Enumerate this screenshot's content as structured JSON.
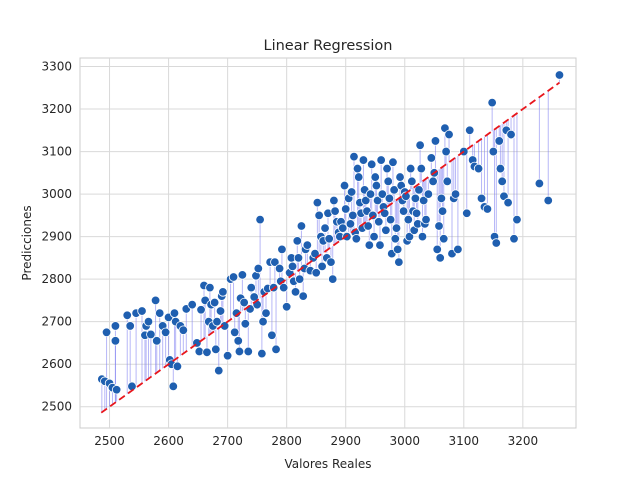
{
  "chart_data": {
    "type": "scatter",
    "title": "Linear Regression",
    "xlabel": "Valores Reales",
    "ylabel": "Predicciones",
    "xlim": [
      2450,
      3290
    ],
    "ylim": [
      2450,
      3320
    ],
    "xticks": [
      2500,
      2600,
      2700,
      2800,
      2900,
      3000,
      3100,
      3200
    ],
    "yticks": [
      2500,
      2600,
      2700,
      2800,
      2900,
      3000,
      3100,
      3200,
      3300
    ],
    "grid": true,
    "reference_line": {
      "x": [
        2486,
        3262
      ],
      "y": [
        2486,
        3262
      ],
      "color": "#e8161c",
      "style": "dashed"
    },
    "point_color": "#1f5fb0",
    "residual_color": "#7b7bf0",
    "points": [
      [
        2487,
        2565
      ],
      [
        2492,
        2560
      ],
      [
        2495,
        2675
      ],
      [
        2500,
        2555
      ],
      [
        2505,
        2545
      ],
      [
        2510,
        2690
      ],
      [
        2510,
        2655
      ],
      [
        2512,
        2540
      ],
      [
        2530,
        2715
      ],
      [
        2535,
        2690
      ],
      [
        2538,
        2548
      ],
      [
        2545,
        2720
      ],
      [
        2555,
        2725
      ],
      [
        2560,
        2668
      ],
      [
        2562,
        2690
      ],
      [
        2566,
        2700
      ],
      [
        2570,
        2670
      ],
      [
        2578,
        2750
      ],
      [
        2580,
        2655
      ],
      [
        2585,
        2720
      ],
      [
        2590,
        2690
      ],
      [
        2595,
        2675
      ],
      [
        2600,
        2710
      ],
      [
        2602,
        2610
      ],
      [
        2605,
        2600
      ],
      [
        2608,
        2548
      ],
      [
        2610,
        2720
      ],
      [
        2612,
        2700
      ],
      [
        2615,
        2595
      ],
      [
        2620,
        2690
      ],
      [
        2625,
        2680
      ],
      [
        2630,
        2730
      ],
      [
        2640,
        2740
      ],
      [
        2648,
        2650
      ],
      [
        2652,
        2630
      ],
      [
        2655,
        2728
      ],
      [
        2660,
        2785
      ],
      [
        2662,
        2750
      ],
      [
        2665,
        2628
      ],
      [
        2668,
        2700
      ],
      [
        2670,
        2780
      ],
      [
        2672,
        2740
      ],
      [
        2675,
        2690
      ],
      [
        2678,
        2745
      ],
      [
        2680,
        2635
      ],
      [
        2682,
        2700
      ],
      [
        2685,
        2585
      ],
      [
        2688,
        2725
      ],
      [
        2690,
        2760
      ],
      [
        2692,
        2770
      ],
      [
        2695,
        2690
      ],
      [
        2700,
        2620
      ],
      [
        2705,
        2800
      ],
      [
        2710,
        2805
      ],
      [
        2712,
        2675
      ],
      [
        2715,
        2720
      ],
      [
        2718,
        2655
      ],
      [
        2720,
        2630
      ],
      [
        2722,
        2755
      ],
      [
        2725,
        2810
      ],
      [
        2728,
        2745
      ],
      [
        2730,
        2695
      ],
      [
        2735,
        2630
      ],
      [
        2738,
        2730
      ],
      [
        2740,
        2780
      ],
      [
        2745,
        2758
      ],
      [
        2748,
        2808
      ],
      [
        2750,
        2740
      ],
      [
        2752,
        2825
      ],
      [
        2755,
        2940
      ],
      [
        2758,
        2625
      ],
      [
        2760,
        2700
      ],
      [
        2762,
        2770
      ],
      [
        2765,
        2720
      ],
      [
        2768,
        2778
      ],
      [
        2772,
        2840
      ],
      [
        2775,
        2668
      ],
      [
        2778,
        2780
      ],
      [
        2780,
        2840
      ],
      [
        2782,
        2635
      ],
      [
        2788,
        2825
      ],
      [
        2790,
        2795
      ],
      [
        2792,
        2870
      ],
      [
        2795,
        2780
      ],
      [
        2800,
        2735
      ],
      [
        2805,
        2815
      ],
      [
        2808,
        2850
      ],
      [
        2810,
        2830
      ],
      [
        2812,
        2795
      ],
      [
        2815,
        2770
      ],
      [
        2818,
        2890
      ],
      [
        2820,
        2850
      ],
      [
        2822,
        2800
      ],
      [
        2825,
        2925
      ],
      [
        2828,
        2760
      ],
      [
        2830,
        2825
      ],
      [
        2832,
        2870
      ],
      [
        2835,
        2880
      ],
      [
        2840,
        2820
      ],
      [
        2845,
        2850
      ],
      [
        2848,
        2860
      ],
      [
        2850,
        2815
      ],
      [
        2852,
        2980
      ],
      [
        2855,
        2950
      ],
      [
        2858,
        2900
      ],
      [
        2860,
        2830
      ],
      [
        2862,
        2890
      ],
      [
        2865,
        2920
      ],
      [
        2868,
        2850
      ],
      [
        2870,
        2955
      ],
      [
        2872,
        2895
      ],
      [
        2875,
        2840
      ],
      [
        2878,
        2800
      ],
      [
        2880,
        2985
      ],
      [
        2882,
        2960
      ],
      [
        2885,
        2935
      ],
      [
        2888,
        2910
      ],
      [
        2890,
        2900
      ],
      [
        2892,
        2935
      ],
      [
        2895,
        2920
      ],
      [
        2898,
        3020
      ],
      [
        2900,
        2965
      ],
      [
        2902,
        2900
      ],
      [
        2905,
        2990
      ],
      [
        2908,
        2930
      ],
      [
        2910,
        3005
      ],
      [
        2912,
        2950
      ],
      [
        2914,
        3088
      ],
      [
        2916,
        2910
      ],
      [
        2918,
        2895
      ],
      [
        2920,
        3060
      ],
      [
        2922,
        3040
      ],
      [
        2924,
        2980
      ],
      [
        2926,
        2955
      ],
      [
        2928,
        2920
      ],
      [
        2930,
        3080
      ],
      [
        2932,
        3010
      ],
      [
        2934,
        2985
      ],
      [
        2936,
        2960
      ],
      [
        2938,
        2925
      ],
      [
        2940,
        2880
      ],
      [
        2942,
        3000
      ],
      [
        2944,
        3070
      ],
      [
        2946,
        2950
      ],
      [
        2948,
        2900
      ],
      [
        2950,
        3040
      ],
      [
        2952,
        3020
      ],
      [
        2954,
        2985
      ],
      [
        2956,
        2935
      ],
      [
        2958,
        2880
      ],
      [
        2960,
        3080
      ],
      [
        2962,
        3000
      ],
      [
        2964,
        2970
      ],
      [
        2966,
        2955
      ],
      [
        2968,
        2915
      ],
      [
        2970,
        3060
      ],
      [
        2972,
        3030
      ],
      [
        2974,
        2990
      ],
      [
        2976,
        2940
      ],
      [
        2978,
        2860
      ],
      [
        2980,
        3075
      ],
      [
        2982,
        3010
      ],
      [
        2984,
        2895
      ],
      [
        2986,
        2920
      ],
      [
        2988,
        2870
      ],
      [
        2990,
        2840
      ],
      [
        2992,
        3040
      ],
      [
        2994,
        3020
      ],
      [
        2996,
        2985
      ],
      [
        2998,
        2960
      ],
      [
        3000,
        3005
      ],
      [
        3002,
        2995
      ],
      [
        3004,
        2890
      ],
      [
        3006,
        2940
      ],
      [
        3008,
        2900
      ],
      [
        3010,
        3060
      ],
      [
        3012,
        3030
      ],
      [
        3014,
        2960
      ],
      [
        3016,
        2915
      ],
      [
        3018,
        2990
      ],
      [
        3020,
        2955
      ],
      [
        3022,
        2930
      ],
      [
        3024,
        3010
      ],
      [
        3026,
        3115
      ],
      [
        3028,
        3060
      ],
      [
        3030,
        2900
      ],
      [
        3032,
        2985
      ],
      [
        3034,
        2930
      ],
      [
        3036,
        2940
      ],
      [
        3040,
        3000
      ],
      [
        3045,
        3085
      ],
      [
        3048,
        3030
      ],
      [
        3050,
        3050
      ],
      [
        3052,
        3125
      ],
      [
        3055,
        2870
      ],
      [
        3058,
        2925
      ],
      [
        3060,
        2850
      ],
      [
        3062,
        2990
      ],
      [
        3064,
        2960
      ],
      [
        3066,
        2895
      ],
      [
        3068,
        3155
      ],
      [
        3070,
        3100
      ],
      [
        3072,
        3030
      ],
      [
        3075,
        3140
      ],
      [
        3080,
        2860
      ],
      [
        3083,
        2990
      ],
      [
        3086,
        3000
      ],
      [
        3090,
        2870
      ],
      [
        3100,
        3100
      ],
      [
        3105,
        2955
      ],
      [
        3110,
        3150
      ],
      [
        3115,
        3080
      ],
      [
        3118,
        3065
      ],
      [
        3125,
        3060
      ],
      [
        3130,
        2990
      ],
      [
        3135,
        2970
      ],
      [
        3140,
        2965
      ],
      [
        3148,
        3215
      ],
      [
        3150,
        3100
      ],
      [
        3152,
        2900
      ],
      [
        3155,
        2885
      ],
      [
        3160,
        3125
      ],
      [
        3162,
        3060
      ],
      [
        3165,
        3030
      ],
      [
        3168,
        2995
      ],
      [
        3172,
        3150
      ],
      [
        3175,
        2980
      ],
      [
        3180,
        3140
      ],
      [
        3185,
        2895
      ],
      [
        3190,
        2940
      ],
      [
        3228,
        3025
      ],
      [
        3243,
        2985
      ],
      [
        3262,
        3280
      ]
    ]
  }
}
